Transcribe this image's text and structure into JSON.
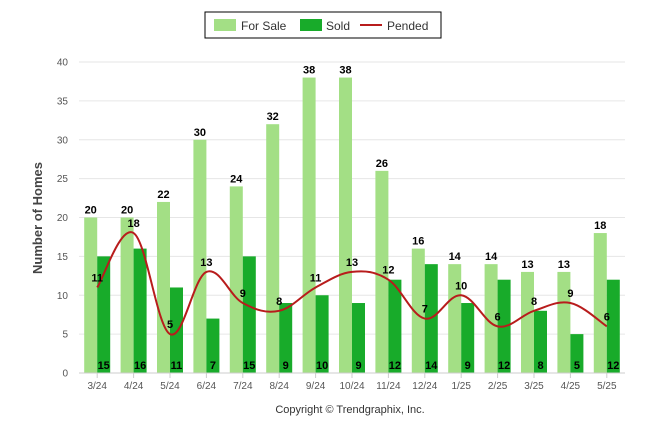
{
  "legend": {
    "for_sale": "For Sale",
    "sold": "Sold",
    "pended": "Pended"
  },
  "footer": "Copyright © Trendgraphix, Inc.",
  "colors": {
    "for_sale": "#a3df85",
    "sold": "#18ab2a",
    "pended": "#b81c1c",
    "grid": "#e6e6e6"
  },
  "chart_data": {
    "type": "bar",
    "ylabel": "Number of Homes",
    "ylim": [
      0,
      40
    ],
    "yticks": [
      0,
      5,
      10,
      15,
      20,
      25,
      30,
      35,
      40
    ],
    "grid": true,
    "legend_position": "top-center",
    "categories": [
      "3/24",
      "4/24",
      "5/24",
      "6/24",
      "7/24",
      "8/24",
      "9/24",
      "10/24",
      "11/24",
      "12/24",
      "1/25",
      "2/25",
      "3/25",
      "4/25",
      "5/25"
    ],
    "series": [
      {
        "name": "For Sale",
        "type": "bar",
        "values": [
          20,
          20,
          22,
          30,
          24,
          32,
          38,
          38,
          26,
          16,
          14,
          14,
          13,
          13,
          18
        ]
      },
      {
        "name": "Sold",
        "type": "bar",
        "values": [
          15,
          16,
          11,
          7,
          15,
          9,
          10,
          9,
          12,
          14,
          9,
          12,
          8,
          5,
          12
        ]
      },
      {
        "name": "Pended",
        "type": "line",
        "values": [
          11,
          18,
          5,
          13,
          9,
          8,
          11,
          13,
          12,
          7,
          10,
          6,
          8,
          9,
          6
        ]
      }
    ]
  }
}
